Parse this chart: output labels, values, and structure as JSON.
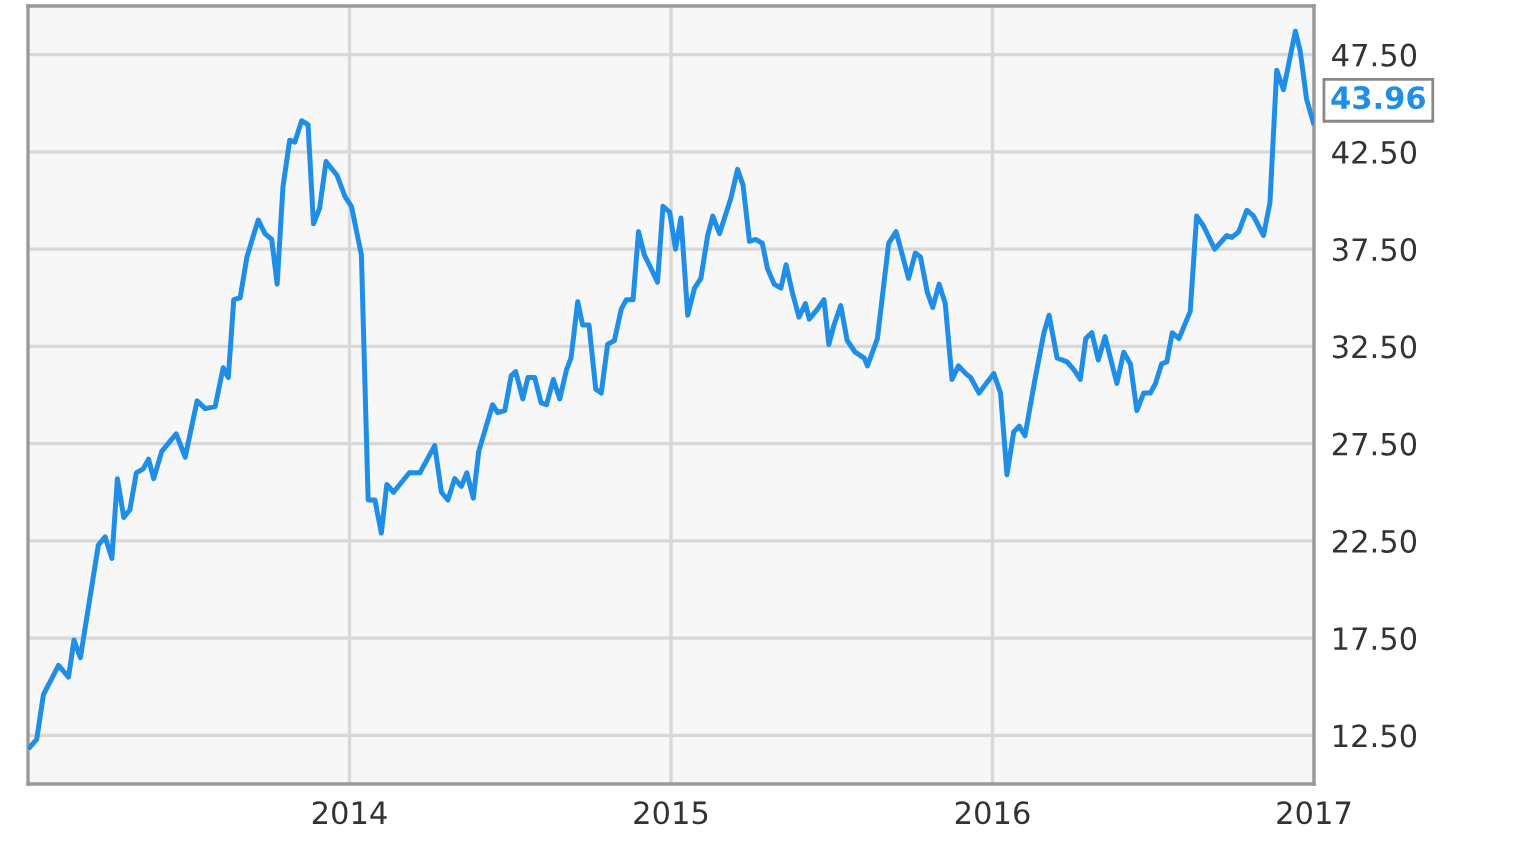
{
  "chart_data": {
    "type": "line",
    "x": [
      2013.006,
      2013.027,
      2013.048,
      2013.095,
      2013.126,
      2013.143,
      2013.163,
      2013.219,
      2013.24,
      2013.261,
      2013.278,
      2013.298,
      2013.317,
      2013.337,
      2013.358,
      2013.375,
      2013.391,
      2013.416,
      2013.461,
      2013.489,
      2013.526,
      2013.551,
      2013.582,
      2013.607,
      2013.623,
      2013.64,
      2013.66,
      2013.681,
      2013.716,
      2013.737,
      2013.758,
      2013.775,
      2013.793,
      2013.814,
      2013.83,
      2013.851,
      2013.871,
      2013.888,
      2013.907,
      2013.927,
      2013.961,
      2013.986,
      2014.006,
      2014.037,
      2014.058,
      2014.079,
      2014.099,
      2014.116,
      2014.137,
      2014.186,
      2014.219,
      2014.265,
      2014.286,
      2014.306,
      2014.327,
      2014.348,
      2014.365,
      2014.385,
      2014.402,
      2014.445,
      2014.461,
      2014.483,
      2014.503,
      2014.517,
      2014.539,
      2014.555,
      2014.576,
      2014.596,
      2014.613,
      2014.634,
      2014.654,
      2014.675,
      2014.689,
      2014.71,
      2014.725,
      2014.745,
      2014.766,
      2014.783,
      2014.803,
      2014.824,
      2014.845,
      2014.861,
      2014.882,
      2014.899,
      2014.917,
      2014.938,
      2014.958,
      2014.975,
      2014.996,
      2015.014,
      2015.031,
      2015.052,
      2015.073,
      2015.093,
      2015.114,
      2015.13,
      2015.151,
      2015.186,
      2015.207,
      2015.224,
      2015.244,
      2015.263,
      2015.284,
      2015.3,
      2015.321,
      2015.342,
      2015.358,
      2015.377,
      2015.398,
      2015.418,
      2015.43,
      2015.455,
      2015.476,
      2015.491,
      2015.507,
      2015.528,
      2015.548,
      2015.573,
      2015.601,
      2015.611,
      2015.642,
      2015.677,
      2015.7,
      2015.739,
      2015.76,
      2015.776,
      2015.797,
      2015.814,
      2015.834,
      2015.853,
      2015.874,
      2015.894,
      2015.917,
      2015.932,
      2015.958,
      2016.004,
      2016.025,
      2016.045,
      2016.066,
      2016.083,
      2016.101,
      2016.132,
      2016.16,
      2016.176,
      2016.201,
      2016.232,
      2016.253,
      2016.273,
      2016.29,
      2016.309,
      2016.329,
      2016.35,
      2016.373,
      2016.387,
      2016.408,
      2016.429,
      2016.449,
      2016.47,
      2016.491,
      2016.507,
      2016.526,
      2016.542,
      2016.559,
      2016.58,
      2016.615,
      2016.635,
      2016.656,
      2016.691,
      2016.729,
      2016.745,
      2016.766,
      2016.791,
      2016.812,
      2016.843,
      2016.863,
      2016.884,
      2016.905,
      2016.942,
      2016.957,
      2016.977,
      2016.998
    ],
    "series": [
      {
        "color": "#1e8ee8",
        "values": [
          11.9,
          12.3,
          14.6,
          16.1,
          15.5,
          17.4,
          16.5,
          22.3,
          22.7,
          21.6,
          25.7,
          23.7,
          24.1,
          26.0,
          26.2,
          26.7,
          25.7,
          27.1,
          28.0,
          26.8,
          29.7,
          29.3,
          29.4,
          31.4,
          30.9,
          34.9,
          35.0,
          37.1,
          39.0,
          38.3,
          38.0,
          35.7,
          40.7,
          43.1,
          43.0,
          44.1,
          43.9,
          38.8,
          39.6,
          42.0,
          41.3,
          40.2,
          39.7,
          37.2,
          24.6,
          24.6,
          22.9,
          25.4,
          25.0,
          26.0,
          26.0,
          27.4,
          25.0,
          24.6,
          25.7,
          25.3,
          26.0,
          24.7,
          27.1,
          29.5,
          29.1,
          29.2,
          31.0,
          31.2,
          29.8,
          30.9,
          30.9,
          29.6,
          29.5,
          30.8,
          29.8,
          31.3,
          31.9,
          34.8,
          33.6,
          33.6,
          30.3,
          30.1,
          32.6,
          32.8,
          34.4,
          34.9,
          34.9,
          38.4,
          37.2,
          36.5,
          35.8,
          39.7,
          39.4,
          37.5,
          39.1,
          34.1,
          35.5,
          36.0,
          38.2,
          39.2,
          38.3,
          40.1,
          41.6,
          40.8,
          37.9,
          38.0,
          37.8,
          36.5,
          35.7,
          35.5,
          36.7,
          35.3,
          34.0,
          34.7,
          33.9,
          34.4,
          34.9,
          32.6,
          33.6,
          34.6,
          32.8,
          32.2,
          31.9,
          31.5,
          32.9,
          37.8,
          38.4,
          36.0,
          37.3,
          37.1,
          35.3,
          34.5,
          35.7,
          34.7,
          30.8,
          31.5,
          31.1,
          30.9,
          30.1,
          31.1,
          30.1,
          25.9,
          28.1,
          28.4,
          27.9,
          30.8,
          33.2,
          34.1,
          31.9,
          31.7,
          31.3,
          30.8,
          32.9,
          33.2,
          31.8,
          33.0,
          31.5,
          30.6,
          32.2,
          31.6,
          29.2,
          30.1,
          30.1,
          30.6,
          31.6,
          31.7,
          33.2,
          32.9,
          34.3,
          39.2,
          38.7,
          37.5,
          38.2,
          38.1,
          38.4,
          39.5,
          39.2,
          38.2,
          39.9,
          46.7,
          45.7,
          48.7,
          47.7,
          45.2,
          44.0
        ]
      }
    ],
    "xlim": [
      2013.0,
      2017.0
    ],
    "xticks": [
      2014,
      2015,
      2016,
      2017
    ],
    "ylim": [
      10,
      50
    ],
    "yticks": [
      {
        "value": 12.5,
        "label": "12.50"
      },
      {
        "value": 17.5,
        "label": "17.50"
      },
      {
        "value": 22.5,
        "label": "22.50"
      },
      {
        "value": 27.5,
        "label": "27.50"
      },
      {
        "value": 32.5,
        "label": "32.50"
      },
      {
        "value": 37.5,
        "label": "37.50"
      },
      {
        "value": 42.5,
        "label": "42.50"
      },
      {
        "value": 47.5,
        "label": "47.50"
      }
    ],
    "grid": true,
    "annotations": [
      {
        "text": "43.96",
        "x": 2016.998,
        "y": 43.96
      }
    ]
  }
}
